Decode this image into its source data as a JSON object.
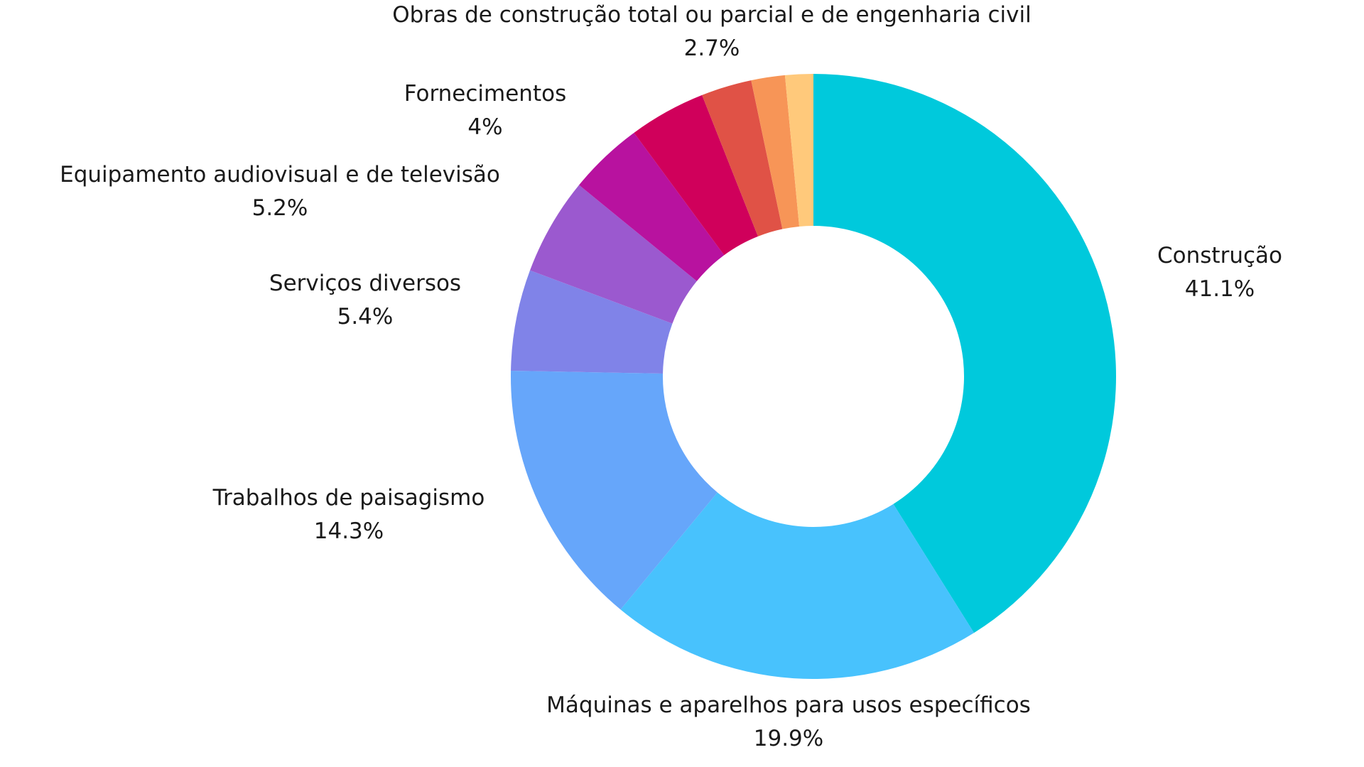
{
  "chart_data": {
    "type": "pie",
    "donut": true,
    "title": "",
    "slices": [
      {
        "label": "Construção",
        "value": 41.1,
        "display": "41.1%",
        "color": "#00c9dc"
      },
      {
        "label": "Máquinas e aparelhos para usos específicos",
        "value": 19.9,
        "display": "19.9%",
        "color": "#48c2fd"
      },
      {
        "label": "Trabalhos de paisagismo",
        "value": 14.3,
        "display": "14.3%",
        "color": "#66a6fa"
      },
      {
        "label": "Serviços diversos",
        "value": 5.4,
        "display": "5.4%",
        "color": "#8083e8"
      },
      {
        "label": "Equipamento audiovisual e de televisão",
        "value": 5.2,
        "display": "5.2%",
        "color": "#9b59cf"
      },
      {
        "label": "Fornecimentos",
        "value": 4,
        "display": "4%",
        "color": "#b8129f"
      },
      {
        "label": "",
        "value": 4.1,
        "display": "",
        "color": "#d0005b"
      },
      {
        "label": "Obras de construção total ou parcial e de engenharia civil",
        "value": 2.7,
        "display": "2.7%",
        "color": "#e05246"
      },
      {
        "label": "",
        "value": 1.8,
        "display": "",
        "color": "#f79557"
      },
      {
        "label": "",
        "value": 1.5,
        "display": "",
        "color": "#ffc97b"
      }
    ],
    "legend": "none"
  }
}
